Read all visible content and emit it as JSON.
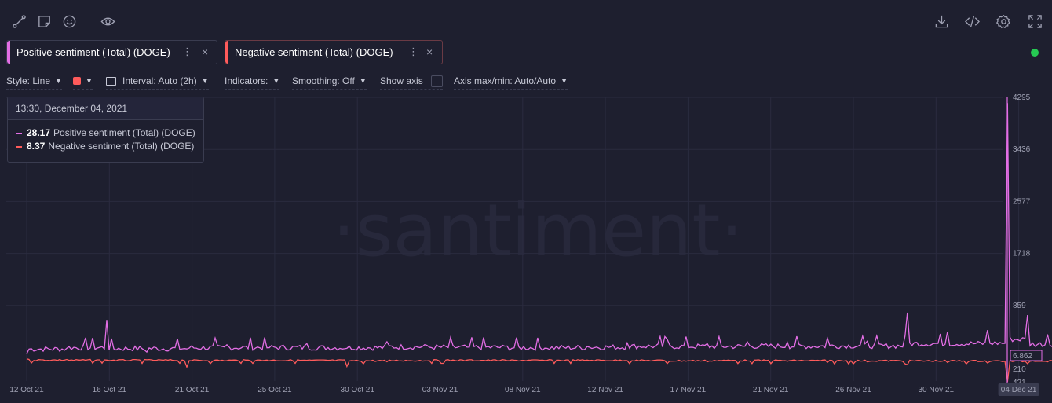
{
  "toolbar": {
    "left_icons": [
      "line-draw-icon",
      "sticky-note-icon",
      "emoji-icon",
      "eye-icon"
    ],
    "right_icons": [
      "download-icon",
      "embed-code-icon",
      "settings-gear-icon",
      "fullscreen-icon"
    ]
  },
  "metrics": [
    {
      "label": "Positive sentiment (Total) (DOGE)",
      "color": "#e36ee5"
    },
    {
      "label": "Negative sentiment (Total) (DOGE)",
      "color": "#ff5b5b"
    }
  ],
  "options": {
    "style": "Style: Line",
    "interval": "Interval: Auto (2h)",
    "indicators": "Indicators:",
    "smoothing": "Smoothing: Off",
    "show_axis": "Show axis",
    "axis_maxmin": "Axis max/min: Auto/Auto"
  },
  "tooltip": {
    "date": "13:30, December 04, 2021",
    "rows": [
      {
        "value": "28.17",
        "label": "Positive sentiment (Total) (DOGE)",
        "color": "#e36ee5"
      },
      {
        "value": "8.37",
        "label": "Negative sentiment (Total) (DOGE)",
        "color": "#ff5b5b"
      }
    ]
  },
  "watermark": "·santiment·",
  "chart_data": {
    "type": "line",
    "x_ticks": [
      "12 Oct 21",
      "16 Oct 21",
      "21 Oct 21",
      "25 Oct 21",
      "30 Oct 21",
      "03 Nov 21",
      "08 Nov 21",
      "12 Nov 21",
      "17 Nov 21",
      "21 Nov 21",
      "26 Nov 21",
      "30 Nov 21",
      "04 Dec 21"
    ],
    "y_ticks": [
      "4295",
      "3436",
      "2577",
      "1718",
      "859"
    ],
    "y_ticks_lower": [
      "210",
      "421"
    ],
    "ylim": [
      0,
      4295
    ],
    "current_value_badge": "6.862",
    "series": [
      {
        "name": "Positive sentiment (Total) (DOGE)",
        "color": "#e36ee5",
        "x": [
          "12 Oct 21",
          "14 Oct 21",
          "16 Oct 21",
          "18 Oct 21",
          "20 Oct 21",
          "22 Oct 21",
          "24 Oct 21",
          "26 Oct 21",
          "28 Oct 21",
          "30 Oct 21",
          "01 Nov 21",
          "03 Nov 21",
          "05 Nov 21",
          "07 Nov 21",
          "09 Nov 21",
          "11 Nov 21",
          "13 Nov 21",
          "15 Nov 21",
          "17 Nov 21",
          "19 Nov 21",
          "21 Nov 21",
          "23 Nov 21",
          "25 Nov 21",
          "27 Nov 21",
          "29 Nov 21",
          "30 Nov 21",
          "01 Dec 21",
          "02 Dec 21",
          "03 Dec 21",
          "04 Dec 21"
        ],
        "values": [
          60,
          150,
          620,
          90,
          140,
          210,
          160,
          230,
          150,
          260,
          200,
          170,
          190,
          150,
          180,
          240,
          300,
          230,
          260,
          250,
          320,
          270,
          740,
          420,
          450,
          4200,
          700,
          380,
          850,
          120
        ]
      },
      {
        "name": "Negative sentiment (Total) (DOGE)",
        "color": "#ff5b5b",
        "x": [
          "12 Oct 21",
          "14 Oct 21",
          "16 Oct 21",
          "18 Oct 21",
          "20 Oct 21",
          "22 Oct 21",
          "24 Oct 21",
          "26 Oct 21",
          "28 Oct 21",
          "30 Oct 21",
          "01 Nov 21",
          "03 Nov 21",
          "05 Nov 21",
          "07 Nov 21",
          "09 Nov 21",
          "11 Nov 21",
          "13 Nov 21",
          "15 Nov 21",
          "17 Nov 21",
          "19 Nov 21",
          "21 Nov 21",
          "23 Nov 21",
          "25 Nov 21",
          "27 Nov 21",
          "29 Nov 21",
          "30 Nov 21",
          "01 Dec 21",
          "02 Dec 21",
          "03 Dec 21",
          "04 Dec 21"
        ],
        "values": [
          10,
          20,
          30,
          25,
          150,
          40,
          30,
          35,
          140,
          60,
          45,
          30,
          40,
          35,
          30,
          40,
          90,
          60,
          45,
          50,
          70,
          60,
          110,
          70,
          80,
          400,
          90,
          60,
          70,
          40
        ]
      }
    ]
  }
}
